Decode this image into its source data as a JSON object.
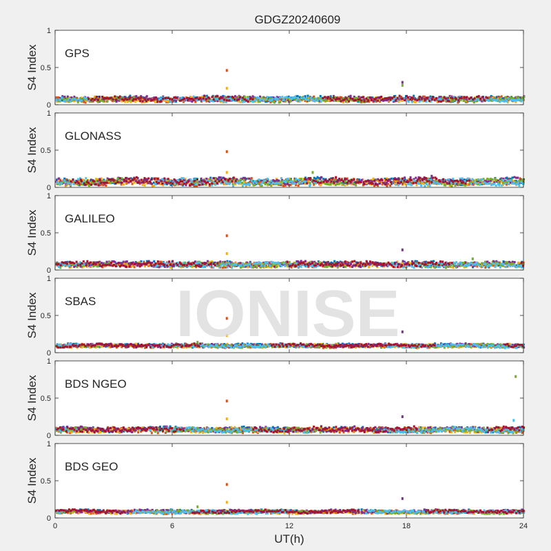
{
  "chart_data": {
    "type": "scatter",
    "title": "GDGZ20240609",
    "xlabel": "UT(h)",
    "ylabel": "S4 Index",
    "xlim": [
      0,
      24
    ],
    "ylim": [
      0,
      1
    ],
    "x_ticks": [
      "0",
      "6",
      "12",
      "18",
      "24"
    ],
    "x_tick_values": [
      0,
      6,
      12,
      18,
      24
    ],
    "y_ticks": [
      "0",
      "0.5",
      "1"
    ],
    "y_tick_values": [
      0,
      0.5,
      1
    ],
    "grid": false,
    "watermark": "IONISE",
    "palette": [
      "#0072BD",
      "#D95319",
      "#EDB120",
      "#7E2F8E",
      "#77AC30",
      "#4DBEEE",
      "#A2142F"
    ],
    "panels": [
      {
        "name": "GPS",
        "baseline": 0.07,
        "spread": 0.03,
        "spikes": [
          {
            "x": 8.8,
            "y": 0.46
          },
          {
            "x": 8.8,
            "y": 0.22
          },
          {
            "x": 17.8,
            "y": 0.3
          },
          {
            "x": 17.8,
            "y": 0.26
          }
        ]
      },
      {
        "name": "GLONASS",
        "baseline": 0.07,
        "spread": 0.04,
        "spikes": [
          {
            "x": 8.8,
            "y": 0.48
          },
          {
            "x": 8.8,
            "y": 0.2
          },
          {
            "x": 19.3,
            "y": 0.15
          },
          {
            "x": 13.2,
            "y": 0.2
          }
        ]
      },
      {
        "name": "GALILEO",
        "baseline": 0.07,
        "spread": 0.03,
        "spikes": [
          {
            "x": 8.8,
            "y": 0.46
          },
          {
            "x": 8.8,
            "y": 0.22
          },
          {
            "x": 17.8,
            "y": 0.27
          },
          {
            "x": 21.4,
            "y": 0.15
          }
        ]
      },
      {
        "name": "SBAS",
        "baseline": 0.09,
        "spread": 0.02,
        "spikes": [
          {
            "x": 8.8,
            "y": 0.46
          },
          {
            "x": 8.8,
            "y": 0.23
          },
          {
            "x": 17.8,
            "y": 0.28
          },
          {
            "x": 7.3,
            "y": 0.14
          }
        ]
      },
      {
        "name": "BDS NGEO",
        "baseline": 0.07,
        "spread": 0.03,
        "spikes": [
          {
            "x": 8.8,
            "y": 0.46
          },
          {
            "x": 8.8,
            "y": 0.22
          },
          {
            "x": 17.8,
            "y": 0.25
          },
          {
            "x": 23.6,
            "y": 0.79
          },
          {
            "x": 23.5,
            "y": 0.2
          }
        ]
      },
      {
        "name": "BDS GEO",
        "baseline": 0.08,
        "spread": 0.02,
        "spikes": [
          {
            "x": 8.8,
            "y": 0.45
          },
          {
            "x": 8.8,
            "y": 0.21
          },
          {
            "x": 17.8,
            "y": 0.26
          },
          {
            "x": 7.3,
            "y": 0.15
          }
        ]
      }
    ]
  }
}
